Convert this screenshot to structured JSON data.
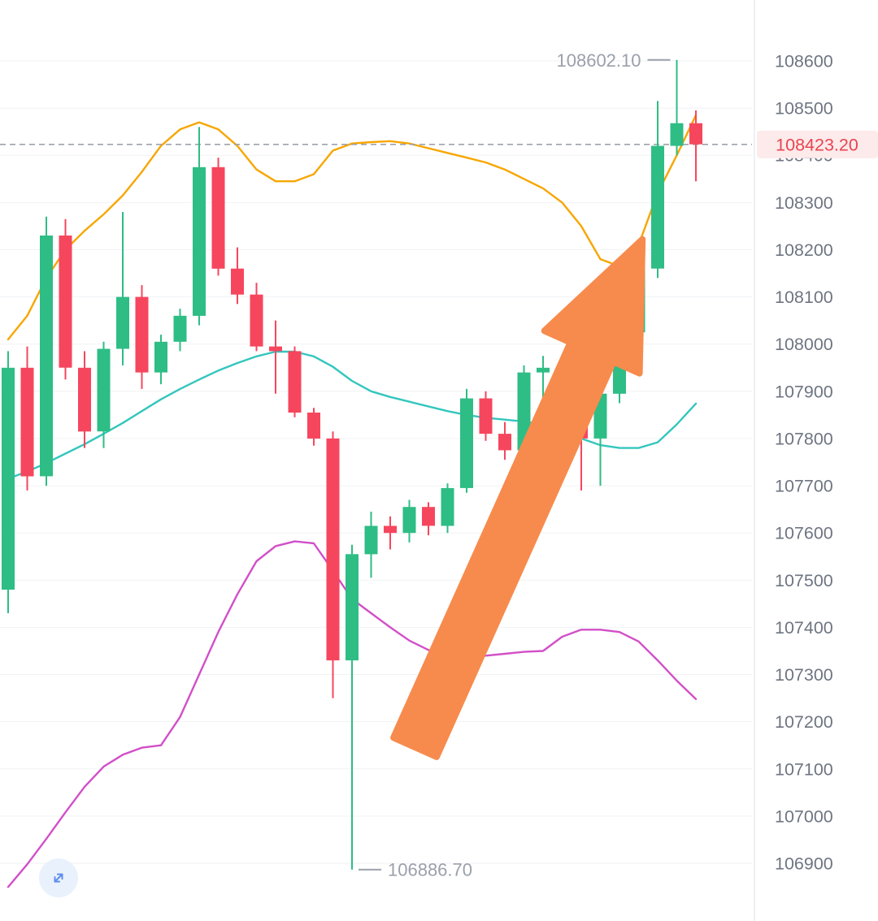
{
  "chart_data": {
    "type": "candlestick",
    "title": "",
    "grid": "horizontal",
    "legend_position": "none",
    "y_axis": {
      "range": [
        106900,
        108600
      ],
      "ticks": [
        108600,
        108500,
        108400,
        108300,
        108200,
        108100,
        108000,
        107900,
        107800,
        107700,
        107600,
        107500,
        107400,
        107300,
        107200,
        107100,
        107000,
        106900
      ],
      "tick_labels": [
        "108600",
        "108500",
        "108400",
        "108300",
        "108200",
        "108100",
        "108000",
        "107900",
        "107800",
        "107700",
        "107600",
        "107500",
        "107400",
        "107300",
        "107200",
        "107100",
        "107000",
        "106900"
      ]
    },
    "current_price": {
      "value": 108423.2,
      "label": "108423.20"
    },
    "high_marker": {
      "value": 108602.1,
      "label": "108602.10",
      "candle_index": 35
    },
    "low_marker": {
      "value": 106886.7,
      "label": "106886.70",
      "candle_index": 18
    },
    "candles": [
      [
        107480,
        107985,
        107430,
        107950
      ],
      [
        107950,
        107995,
        107690,
        107720
      ],
      [
        107720,
        108270,
        107700,
        108230
      ],
      [
        108230,
        108265,
        107925,
        107950
      ],
      [
        107950,
        107985,
        107780,
        107815
      ],
      [
        107815,
        108005,
        107780,
        107990
      ],
      [
        107990,
        108280,
        107955,
        108100
      ],
      [
        108100,
        108125,
        107905,
        107940
      ],
      [
        107940,
        108020,
        107915,
        108005
      ],
      [
        108005,
        108075,
        107985,
        108060
      ],
      [
        108060,
        108460,
        108040,
        108375
      ],
      [
        108375,
        108395,
        108145,
        108160
      ],
      [
        108160,
        108205,
        108085,
        108105
      ],
      [
        108105,
        108130,
        107985,
        107995
      ],
      [
        107995,
        108050,
        107895,
        107985
      ],
      [
        107985,
        107995,
        107845,
        107855
      ],
      [
        107855,
        107865,
        107785,
        107800
      ],
      [
        107800,
        107815,
        107250,
        107330
      ],
      [
        107330,
        107575,
        106886.7,
        107555
      ],
      [
        107555,
        107645,
        107505,
        107615
      ],
      [
        107615,
        107635,
        107565,
        107600
      ],
      [
        107600,
        107670,
        107580,
        107655
      ],
      [
        107655,
        107665,
        107595,
        107615
      ],
      [
        107615,
        107705,
        107600,
        107695
      ],
      [
        107695,
        107905,
        107685,
        107885
      ],
      [
        107885,
        107900,
        107795,
        107810
      ],
      [
        107810,
        107835,
        107755,
        107775
      ],
      [
        107775,
        107955,
        107765,
        107940
      ],
      [
        107940,
        107975,
        107880,
        107950
      ],
      [
        107950,
        107965,
        107855,
        107880
      ],
      [
        107880,
        107895,
        107690,
        107800
      ],
      [
        107800,
        107905,
        107700,
        107895
      ],
      [
        107895,
        108035,
        107875,
        108025
      ],
      [
        108025,
        108170,
        108005,
        108160
      ],
      [
        108160,
        108515,
        108140,
        108420
      ],
      [
        108420,
        108602.1,
        108400,
        108468
      ],
      [
        108468,
        108495,
        108345,
        108423.2
      ]
    ],
    "overlays": {
      "bollinger_upper": [
        108010,
        108060,
        108140,
        108200,
        108240,
        108275,
        108315,
        108365,
        108420,
        108455,
        108470,
        108455,
        108420,
        108370,
        108345,
        108345,
        108360,
        108410,
        108425,
        108428,
        108430,
        108425,
        108415,
        108405,
        108395,
        108385,
        108370,
        108350,
        108330,
        108300,
        108250,
        108180,
        108165,
        108210,
        108320,
        108400,
        108485
      ],
      "bollinger_middle": [
        107715,
        107730,
        107748,
        107768,
        107788,
        107810,
        107833,
        107858,
        107883,
        107905,
        107925,
        107944,
        107960,
        107974,
        107984,
        107984,
        107974,
        107952,
        107922,
        107900,
        107888,
        107878,
        107868,
        107858,
        107850,
        107844,
        107840,
        107836,
        107830,
        107820,
        107800,
        107786,
        107780,
        107780,
        107792,
        107830,
        107874
      ],
      "bollinger_lower": [
        106850,
        106898,
        106952,
        107008,
        107062,
        107105,
        107130,
        107145,
        107150,
        107210,
        107300,
        107390,
        107470,
        107540,
        107572,
        107582,
        107578,
        107520,
        107460,
        107430,
        107400,
        107372,
        107352,
        107342,
        107338,
        107340,
        107344,
        107348,
        107350,
        107380,
        107395,
        107395,
        107390,
        107370,
        107330,
        107287,
        107248
      ]
    },
    "trend_arrow": {
      "from_index": 21.3,
      "from_price": 107146,
      "to_index": 33.2,
      "to_price": 108222
    }
  },
  "colors": {
    "up": "#2EBD85",
    "down": "#F6465D",
    "band_upper": "#F7A600",
    "band_middle": "#33C6BE",
    "band_lower": "#D24FC8",
    "arrow": "#F78B4D",
    "price_label_bg": "#FDEAEB",
    "price_label_text": "#E8454F",
    "axis_text": "#6E7582",
    "annotation_text": "#9AA0AB",
    "dashed_line": "#9CA2AC",
    "grid": "#F1F2F4",
    "axis_border": "#E9EBEF",
    "expand_icon": "#5B8DEE"
  },
  "controls": {
    "expand_button": "expand"
  }
}
